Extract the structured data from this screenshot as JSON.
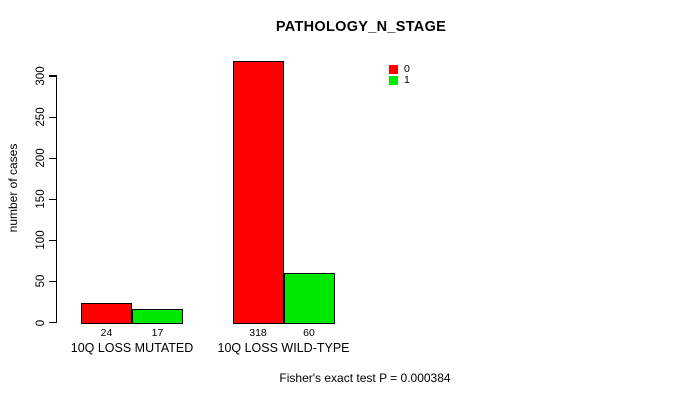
{
  "chart_data": {
    "type": "bar",
    "title": "PATHOLOGY_N_STAGE",
    "ylabel": "number of cases",
    "xlabel": "",
    "categories": [
      "10Q LOSS MUTATED",
      "10Q LOSS WILD-TYPE"
    ],
    "series": [
      {
        "name": "0",
        "color": "#ff0000",
        "values": [
          24,
          318
        ]
      },
      {
        "name": "1",
        "color": "#00e800",
        "values": [
          17,
          60
        ]
      }
    ],
    "bar_value_labels": [
      [
        "24",
        "318"
      ],
      [
        "17",
        "60"
      ]
    ],
    "yticks": [
      0,
      50,
      100,
      150,
      200,
      250,
      300
    ],
    "ylim": [
      0,
      318
    ],
    "grid": false,
    "legend_position": "top-right",
    "annotation": "Fisher's exact test P = 0.000384"
  },
  "colors": {
    "series_0": "#ff0000",
    "series_1": "#00e800",
    "axis": "#000000",
    "background": "#ffffff"
  }
}
